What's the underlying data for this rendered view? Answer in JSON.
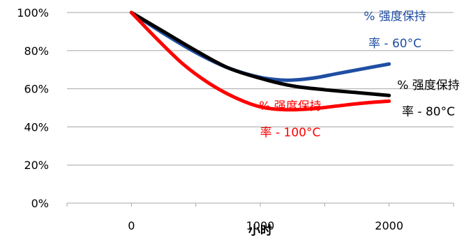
{
  "chart_data": {
    "type": "line",
    "title": "",
    "xlabel": "小时",
    "ylabel": "",
    "x_ticks": [
      "0",
      "1000",
      "2000"
    ],
    "y_ticks": [
      "0%",
      "20%",
      "40%",
      "60%",
      "80%",
      "100%"
    ],
    "xlim": [
      -500,
      2500
    ],
    "ylim": [
      0,
      100
    ],
    "grid": true,
    "legend": "inline labels",
    "series": [
      {
        "name": "% 强度保持率 - 60°C",
        "label_lines": [
          "% 强度保持",
          "率 - 60°C"
        ],
        "color": "#1f4ea3",
        "x": [
          0,
          250,
          500,
          750,
          1000,
          1200,
          1400,
          1600,
          1800,
          2000
        ],
        "y": [
          100,
          89,
          79,
          71,
          66,
          64.5,
          65.5,
          68,
          70.5,
          73
        ]
      },
      {
        "name": "% 强度保持率 - 80°C",
        "label_lines": [
          "% 强度保持",
          "率 - 80°C"
        ],
        "color": "#000000",
        "x": [
          0,
          250,
          500,
          750,
          1000,
          1250,
          1500,
          1750,
          2000
        ],
        "y": [
          100,
          90,
          80,
          71,
          65.5,
          61.5,
          59.5,
          58,
          56.5
        ]
      },
      {
        "name": "% 强度保持率 - 100°C",
        "label_lines": [
          "% 强度保持",
          "率 - 100°C"
        ],
        "color": "#ff0000",
        "x": [
          0,
          200,
          400,
          600,
          800,
          1000,
          1200,
          1400,
          1600,
          1800,
          2000
        ],
        "y": [
          100,
          86,
          73,
          63,
          55.5,
          50.5,
          49,
          49.5,
          51,
          52.5,
          53.5
        ]
      }
    ]
  }
}
